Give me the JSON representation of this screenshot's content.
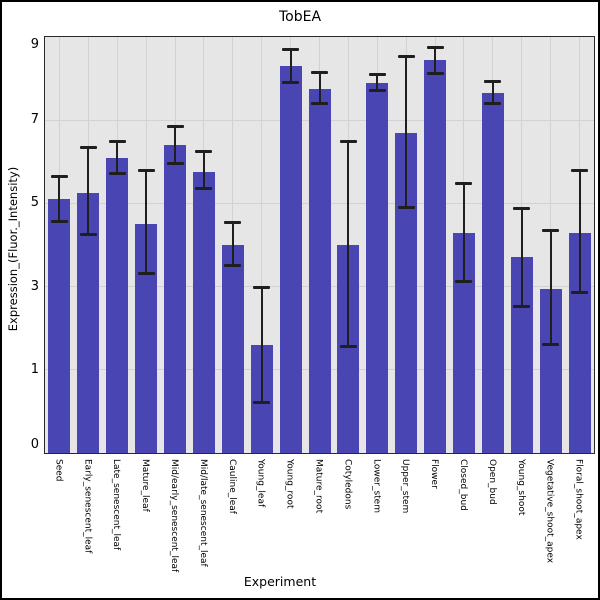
{
  "chart_data": {
    "type": "bar",
    "title": "TobEA",
    "xlabel": "Experiment",
    "ylabel": "Expression_(Fluor._Intensity)",
    "ylim": [
      0,
      9
    ],
    "ytick_labels": [
      "0",
      "1",
      "3",
      "5",
      "7",
      "9"
    ],
    "ytick_values": [
      0,
      1,
      3,
      5,
      7,
      9
    ],
    "axis_note": "y ticks 0,1,3,5,7,9 are rendered evenly spaced",
    "grid": true,
    "legend": null,
    "colors": {
      "bar": "#4946b4",
      "plot_background": "#e6e6e6",
      "grid": "#d2d2d2",
      "error": "#1f1f1f",
      "spine": "#2a2a2a",
      "figure_background": "#ffffff"
    },
    "categories": [
      "Seed",
      "Early_senescent_leaf",
      "Late_senescent_leaf",
      "Mature_leaf",
      "Mid/early_senescent_leaf",
      "Mid/late_senescent_leaf",
      "Cauline_leaf",
      "Young_leaf",
      "Young_root",
      "Mature_root",
      "Cotyledons",
      "Lower_stem",
      "Upper_stem",
      "Flower",
      "Closed_bud",
      "Open_bud",
      "Young_shoot",
      "Vegetative_shoot_apex",
      "Floral_shoot_apex"
    ],
    "values": [
      5.1,
      5.25,
      6.1,
      4.5,
      6.4,
      5.75,
      4.0,
      1.6,
      8.3,
      7.75,
      4.0,
      7.9,
      6.7,
      8.45,
      4.3,
      7.65,
      3.7,
      2.95,
      4.3
    ],
    "error_low": [
      4.55,
      4.25,
      5.7,
      3.3,
      5.95,
      5.35,
      3.5,
      0.6,
      7.9,
      7.4,
      1.55,
      7.7,
      4.9,
      8.1,
      3.1,
      7.4,
      2.5,
      1.6,
      2.85
    ],
    "error_high": [
      5.65,
      6.35,
      6.5,
      5.8,
      6.85,
      6.25,
      4.55,
      3.0,
      8.7,
      8.15,
      6.5,
      8.1,
      8.55,
      8.75,
      5.5,
      7.95,
      4.9,
      4.35,
      5.8
    ]
  }
}
